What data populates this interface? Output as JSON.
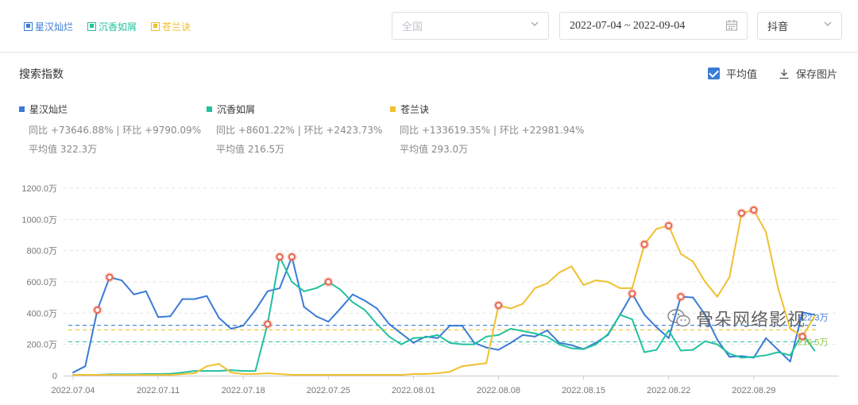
{
  "top_legend": [
    {
      "label": "星汉灿烂",
      "color": "#3a7bd5"
    },
    {
      "label": "沉香如屑",
      "color": "#22c1a0"
    },
    {
      "label": "苍兰诀",
      "color": "#f0c030"
    }
  ],
  "filters": {
    "region_placeholder": "全国",
    "date_range": "2022-07-04 ~ 2022-09-04",
    "platform": "抖音"
  },
  "panel": {
    "title": "搜索指数",
    "avg_label": "平均值",
    "save_label": "保存图片"
  },
  "series_info": [
    {
      "name": "星汉灿烂",
      "yoy": "同比 +73646.88% | 环比 +9790.09%",
      "avg": "平均值 322.3万"
    },
    {
      "name": "沉香如屑",
      "yoy": "同比 +8601.22% | 环比 +2423.73%",
      "avg": "平均值 216.5万"
    },
    {
      "name": "苍兰诀",
      "yoy": "同比 +133619.35% | 环比 +22981.94%",
      "avg": "平均值 293.0万"
    }
  ],
  "watermark": "骨朵网络影视",
  "chart_data": {
    "type": "line",
    "title": "",
    "xlabel": "",
    "ylabel": "",
    "ylim": [
      0,
      1200
    ],
    "grid": true,
    "y_ticks": [
      "0",
      "200.0万",
      "400.0万",
      "600.0万",
      "800.0万",
      "1000.0万",
      "1200.0万"
    ],
    "x_tick_labels": [
      "2022.07.04",
      "2022.07.11",
      "2022.07.18",
      "2022.07.25",
      "2022.08.01",
      "2022.08.08",
      "2022.08.15",
      "2022.08.22",
      "2022.08.29"
    ],
    "x_start": "2022-07-04",
    "avg_line_labels": [
      "322.3万",
      "216.5万"
    ],
    "series": [
      {
        "name": "星汉灿烂",
        "color": "#3a7bd5",
        "avg": 322.3,
        "values": [
          20,
          60,
          420,
          630,
          610,
          520,
          540,
          375,
          380,
          490,
          490,
          510,
          370,
          300,
          320,
          420,
          540,
          560,
          760,
          440,
          380,
          345,
          430,
          520,
          480,
          430,
          330,
          270,
          210,
          250,
          240,
          320,
          320,
          210,
          180,
          165,
          210,
          260,
          250,
          290,
          210,
          195,
          170,
          210,
          260,
          390,
          525,
          390,
          310,
          240,
          505,
          500,
          390,
          230,
          120,
          125,
          115,
          240,
          165,
          90,
          405,
          390
        ],
        "markers": [
          2,
          3,
          18,
          46,
          50
        ]
      },
      {
        "name": "沉香如屑",
        "color": "#22c1a0",
        "avg": 216.5,
        "values": [
          5,
          5,
          5,
          8,
          8,
          8,
          10,
          10,
          12,
          20,
          30,
          30,
          30,
          35,
          30,
          30,
          330,
          760,
          600,
          540,
          560,
          600,
          550,
          470,
          420,
          330,
          250,
          200,
          240,
          245,
          260,
          210,
          200,
          200,
          250,
          260,
          300,
          285,
          270,
          250,
          200,
          175,
          170,
          200,
          265,
          390,
          360,
          150,
          165,
          290,
          160,
          165,
          220,
          200,
          140,
          115,
          120,
          130,
          150,
          130,
          270,
          160
        ],
        "markers": [
          16,
          17,
          21
        ]
      },
      {
        "name": "苍兰诀",
        "color": "#f0c030",
        "avg": 293.0,
        "values": [
          5,
          5,
          5,
          5,
          5,
          5,
          5,
          5,
          5,
          10,
          15,
          60,
          75,
          20,
          10,
          10,
          15,
          10,
          5,
          5,
          5,
          5,
          5,
          5,
          5,
          5,
          5,
          5,
          10,
          10,
          15,
          25,
          60,
          70,
          80,
          450,
          430,
          460,
          560,
          590,
          660,
          700,
          580,
          610,
          600,
          560,
          560,
          840,
          940,
          960,
          780,
          730,
          600,
          505,
          630,
          1040,
          1060,
          920,
          560,
          300,
          250,
          380
        ],
        "markers": [
          35,
          47,
          49,
          55,
          56,
          60
        ]
      }
    ]
  }
}
